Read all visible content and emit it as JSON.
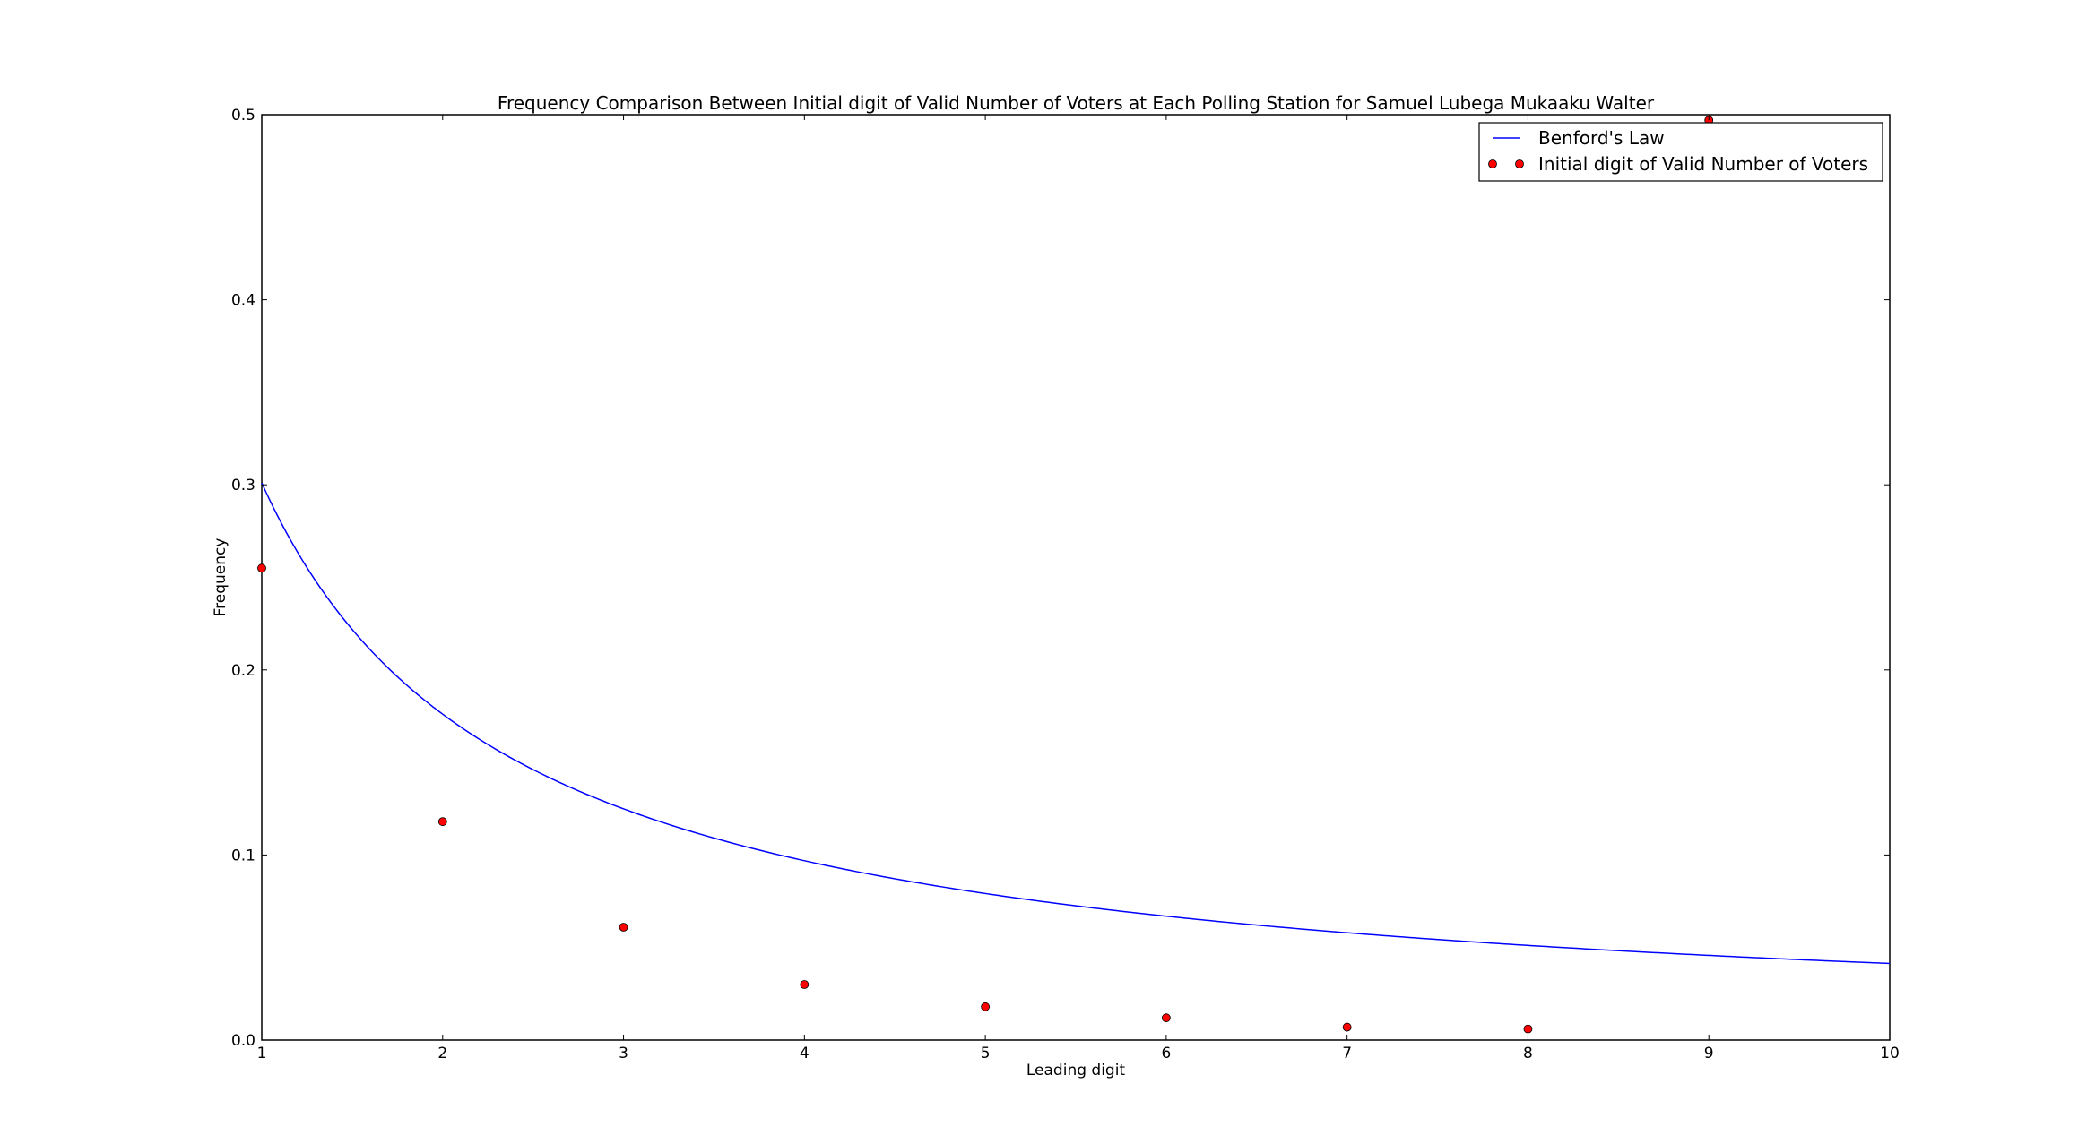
{
  "chart_data": {
    "type": "line",
    "title": "Frequency Comparison Between Initial digit of Valid Number of Voters at Each Polling Station for Samuel Lubega Mukaaku Walter",
    "xlabel": "Leading digit",
    "ylabel": "Frequency",
    "xlim": [
      1,
      10
    ],
    "ylim": [
      0,
      0.5
    ],
    "x_ticks": [
      "1",
      "2",
      "3",
      "4",
      "5",
      "6",
      "7",
      "8",
      "9",
      "10"
    ],
    "y_ticks": [
      "0.0",
      "0.1",
      "0.2",
      "0.3",
      "0.4",
      "0.5"
    ],
    "grid": false,
    "legend_position": "top-right",
    "series": [
      {
        "name": "Benford's Law",
        "kind": "line",
        "color": "#0000ff",
        "function": "log10(1 + 1/x)",
        "x": [
          1,
          1.5,
          2,
          2.5,
          3,
          3.5,
          4,
          4.5,
          5,
          5.5,
          6,
          6.5,
          7,
          7.5,
          8,
          8.5,
          9,
          9.5,
          10
        ],
        "values": [
          0.301,
          0.2218,
          0.1761,
          0.1461,
          0.1249,
          0.1091,
          0.0969,
          0.0872,
          0.0792,
          0.0726,
          0.0669,
          0.0621,
          0.058,
          0.0543,
          0.0512,
          0.0483,
          0.0458,
          0.0435,
          0.0414
        ]
      },
      {
        "name": "Initial digit of Valid Number of Voters",
        "kind": "scatter",
        "color": "#ff0000",
        "x": [
          1,
          2,
          3,
          4,
          5,
          6,
          7,
          8,
          9
        ],
        "values": [
          0.255,
          0.118,
          0.061,
          0.03,
          0.018,
          0.012,
          0.007,
          0.006,
          0.497
        ]
      }
    ]
  }
}
